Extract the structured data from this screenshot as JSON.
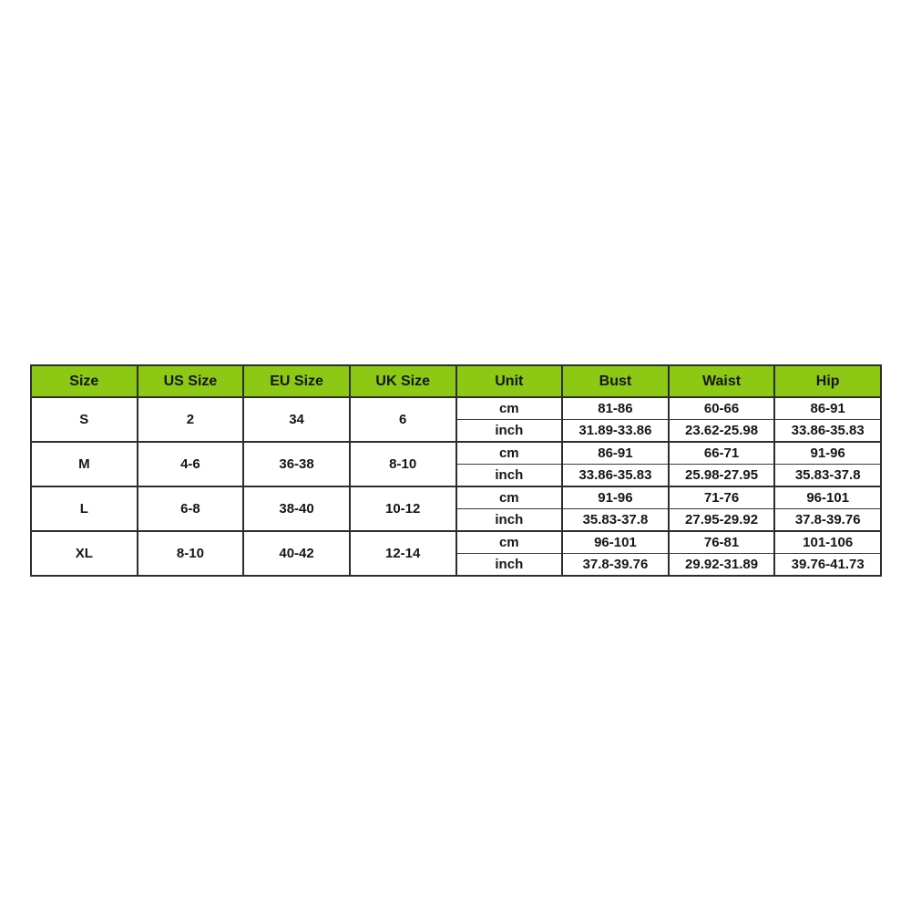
{
  "colors": {
    "header_bg": "#8cc814",
    "border": "#2d2d2d",
    "text": "#161616",
    "page_bg": "#ffffff"
  },
  "table": {
    "headers": [
      "Size",
      "US Size",
      "EU Size",
      "UK Size",
      "Unit",
      "Bust",
      "Waist",
      "Hip"
    ],
    "groups": [
      {
        "size": "S",
        "us": "2",
        "eu": "34",
        "uk": "6",
        "cm": {
          "unit": "cm",
          "bust": "81-86",
          "waist": "60-66",
          "hip": "86-91"
        },
        "inch": {
          "unit": "inch",
          "bust": "31.89-33.86",
          "waist": "23.62-25.98",
          "hip": "33.86-35.83"
        }
      },
      {
        "size": "M",
        "us": "4-6",
        "eu": "36-38",
        "uk": "8-10",
        "cm": {
          "unit": "cm",
          "bust": "86-91",
          "waist": "66-71",
          "hip": "91-96"
        },
        "inch": {
          "unit": "inch",
          "bust": "33.86-35.83",
          "waist": "25.98-27.95",
          "hip": "35.83-37.8"
        }
      },
      {
        "size": "L",
        "us": "6-8",
        "eu": "38-40",
        "uk": "10-12",
        "cm": {
          "unit": "cm",
          "bust": "91-96",
          "waist": "71-76",
          "hip": "96-101"
        },
        "inch": {
          "unit": "inch",
          "bust": "35.83-37.8",
          "waist": "27.95-29.92",
          "hip": "37.8-39.76"
        }
      },
      {
        "size": "XL",
        "us": "8-10",
        "eu": "40-42",
        "uk": "12-14",
        "cm": {
          "unit": "cm",
          "bust": "96-101",
          "waist": "76-81",
          "hip": "101-106"
        },
        "inch": {
          "unit": "inch",
          "bust": "37.8-39.76",
          "waist": "29.92-31.89",
          "hip": "39.76-41.73"
        }
      }
    ]
  },
  "chart_data": {
    "type": "table",
    "title": "Garment size chart",
    "columns": [
      "Size",
      "US Size",
      "EU Size",
      "UK Size",
      "Unit",
      "Bust",
      "Waist",
      "Hip"
    ],
    "rows": [
      [
        "S",
        "2",
        "34",
        "6",
        "cm",
        "81-86",
        "60-66",
        "86-91"
      ],
      [
        "S",
        "2",
        "34",
        "6",
        "inch",
        "31.89-33.86",
        "23.62-25.98",
        "33.86-35.83"
      ],
      [
        "M",
        "4-6",
        "36-38",
        "8-10",
        "cm",
        "86-91",
        "66-71",
        "91-96"
      ],
      [
        "M",
        "4-6",
        "36-38",
        "8-10",
        "inch",
        "33.86-35.83",
        "25.98-27.95",
        "35.83-37.8"
      ],
      [
        "L",
        "6-8",
        "38-40",
        "10-12",
        "cm",
        "91-96",
        "71-76",
        "96-101"
      ],
      [
        "L",
        "6-8",
        "38-40",
        "10-12",
        "inch",
        "35.83-37.8",
        "27.95-29.92",
        "37.8-39.76"
      ],
      [
        "XL",
        "8-10",
        "40-42",
        "12-14",
        "cm",
        "96-101",
        "76-81",
        "101-106"
      ],
      [
        "XL",
        "8-10",
        "40-42",
        "12-14",
        "inch",
        "37.8-39.76",
        "29.92-31.89",
        "39.76-41.73"
      ]
    ],
    "layout": {
      "header_fill": "#8cc814",
      "merged_columns_per_size": [
        "Size",
        "US Size",
        "EU Size",
        "UK Size"
      ],
      "sub_rows_per_size": [
        "cm",
        "inch"
      ]
    }
  }
}
